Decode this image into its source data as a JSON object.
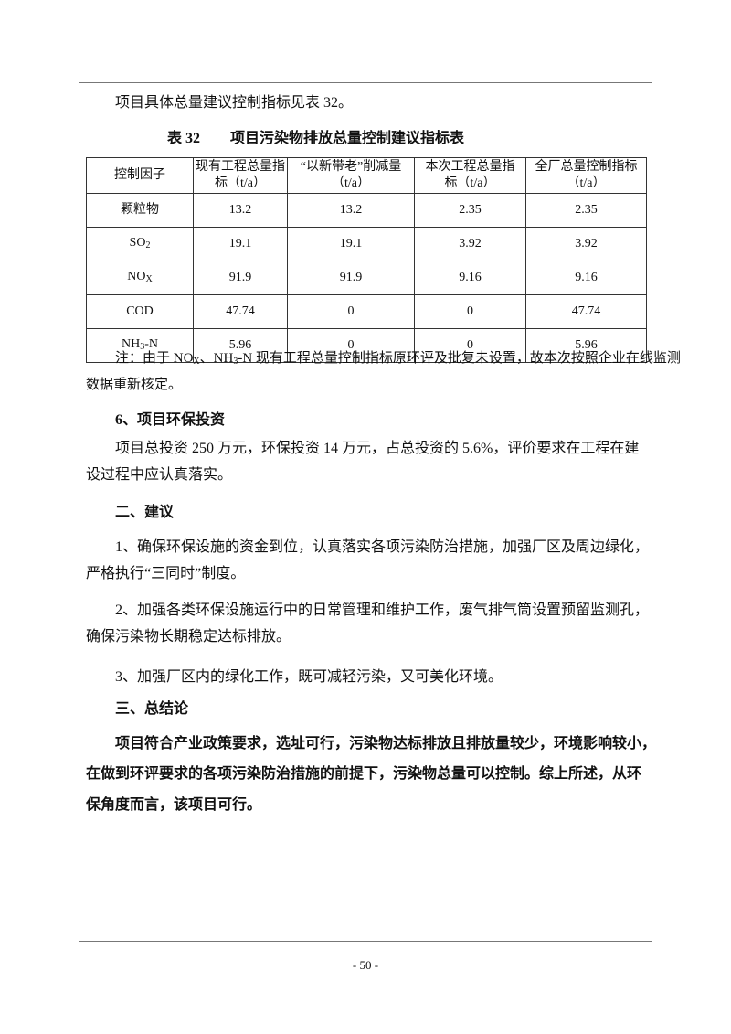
{
  "intro": "项目具体总量建议控制指标见表 32。",
  "table": {
    "number": "表 32",
    "title": "项目污染物排放总量控制建议指标表",
    "headers": [
      {
        "l1": "控制因子",
        "l2": ""
      },
      {
        "l1": "现有工程总量指",
        "l2": "标（t/a）"
      },
      {
        "l1": "“以新带老”削减量",
        "l2": "（t/a）"
      },
      {
        "l1": "本次工程总量指",
        "l2": "标（t/a）"
      },
      {
        "l1": "全厂总量控制指标",
        "l2": "（t/a）"
      }
    ],
    "rows": [
      {
        "f": "颗粒物",
        "s": "",
        "t": "",
        "v": [
          "13.2",
          "13.2",
          "2.35",
          "2.35"
        ]
      },
      {
        "f": "SO",
        "s": "2",
        "t": "",
        "v": [
          "19.1",
          "19.1",
          "3.92",
          "3.92"
        ]
      },
      {
        "f": "NO",
        "s": "X",
        "t": "",
        "v": [
          "91.9",
          "91.9",
          "9.16",
          "9.16"
        ]
      },
      {
        "f": "COD",
        "s": "",
        "t": "",
        "v": [
          "47.74",
          "0",
          "0",
          "47.74"
        ]
      },
      {
        "f": "NH",
        "s": "3",
        "t": "-N",
        "v": [
          "5.96",
          "0",
          "0",
          "5.96"
        ]
      }
    ]
  },
  "note": {
    "a": "注：由于 NO",
    "b": "X",
    "c": "、NH",
    "d": "3",
    "e": "-N 现有工程总量控制指标原环评及批复未设置，故本次按照企业在线监测",
    "line2": "数据重新核定。"
  },
  "s6": {
    "heading": "6、项目环保投资",
    "l1": "项目总投资 250 万元，环保投资 14 万元，占总投资的 5.6%，评价要求在工程在建",
    "l2": "设过程中应认真落实。"
  },
  "s2": {
    "heading": "二、建议",
    "i1a": "1、确保环保设施的资金到位，认真落实各项污染防治措施，加强厂区及周边绿化，",
    "i1b": "严格执行“三同时”制度。",
    "i2a": "2、加强各类环保设施运行中的日常管理和维护工作，废气排气筒设置预留监测孔，",
    "i2b": "确保污染物长期稳定达标排放。",
    "i3": "3、加强厂区内的绿化工作，既可减轻污染，又可美化环境。"
  },
  "s3": {
    "heading": "三、总结论",
    "l1": "项目符合产业政策要求，选址可行，污染物达标排放且排放量较少，环境影响较小，",
    "l2": "在做到环评要求的各项污染防治措施的前提下，污染物总量可以控制。综上所述，从环",
    "l3": "保角度而言，该项目可行。"
  },
  "page_number": "- 50 -"
}
